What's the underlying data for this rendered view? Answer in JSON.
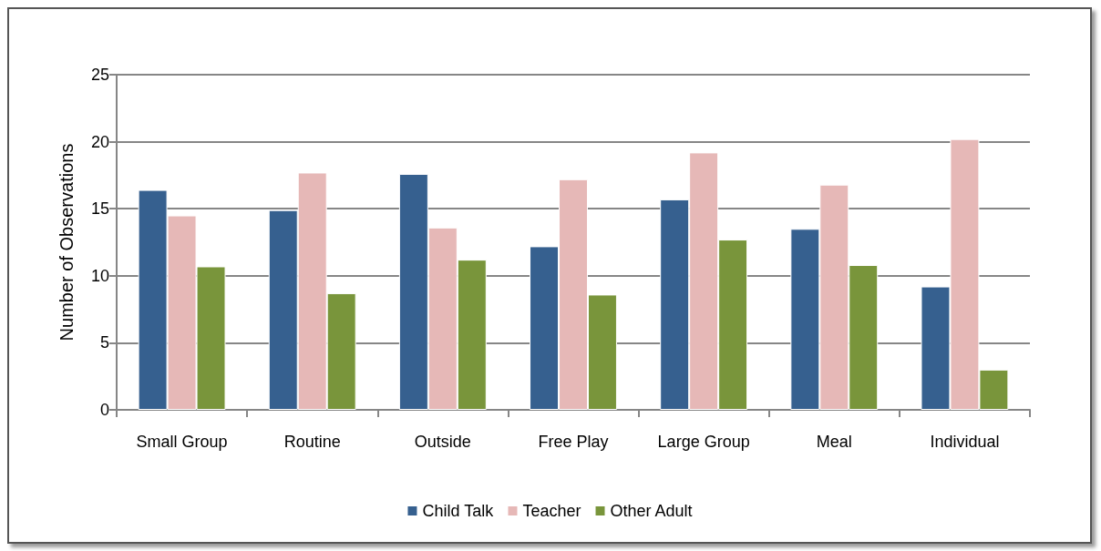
{
  "chart_data": {
    "type": "bar",
    "ylabel": "Number of Observations",
    "categories": [
      "Small Group",
      "Routine",
      "Outside",
      "Free Play",
      "Large Group",
      "Meal",
      "Individual"
    ],
    "series": [
      {
        "name": "Child Talk",
        "color": "#36608f",
        "values": [
          16.4,
          14.9,
          17.6,
          12.2,
          15.7,
          13.5,
          9.2
        ]
      },
      {
        "name": "Teacher",
        "color": "#e6b8b7",
        "values": [
          14.5,
          17.7,
          13.6,
          17.2,
          19.2,
          16.8,
          20.2
        ]
      },
      {
        "name": "Other Adult",
        "color": "#79953b",
        "values": [
          10.7,
          8.7,
          11.2,
          8.6,
          12.7,
          10.8,
          3.0
        ]
      }
    ],
    "ylim": [
      0,
      25
    ],
    "yticks": [
      0,
      5,
      10,
      15,
      20,
      25
    ],
    "grid": "y",
    "legend": "bottom"
  }
}
